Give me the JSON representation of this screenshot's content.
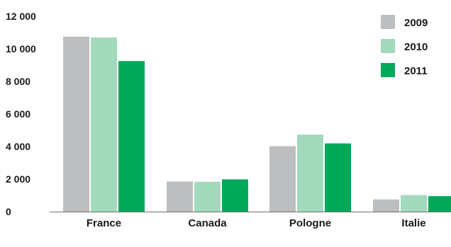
{
  "chart_data": {
    "type": "bar",
    "title": "",
    "xlabel": "",
    "ylabel": "",
    "ylim": [
      0,
      12000
    ],
    "yticks": [
      0,
      2000,
      4000,
      6000,
      8000,
      10000,
      12000
    ],
    "ytick_labels": [
      "0",
      "2 000",
      "4 000",
      "6 000",
      "8 000",
      "10 000",
      "12 000"
    ],
    "categories": [
      "France",
      "Canada",
      "Pologne",
      "Italie"
    ],
    "series": [
      {
        "name": "2009",
        "color": "#bdbec0",
        "values": [
          10750,
          1850,
          4020,
          750
        ]
      },
      {
        "name": "2010",
        "color": "#a3d9bd",
        "values": [
          10700,
          1830,
          4730,
          1020
        ]
      },
      {
        "name": "2011",
        "color": "#00a859",
        "values": [
          9250,
          1980,
          4190,
          950
        ]
      }
    ],
    "grid": false,
    "legend": "top-right"
  }
}
